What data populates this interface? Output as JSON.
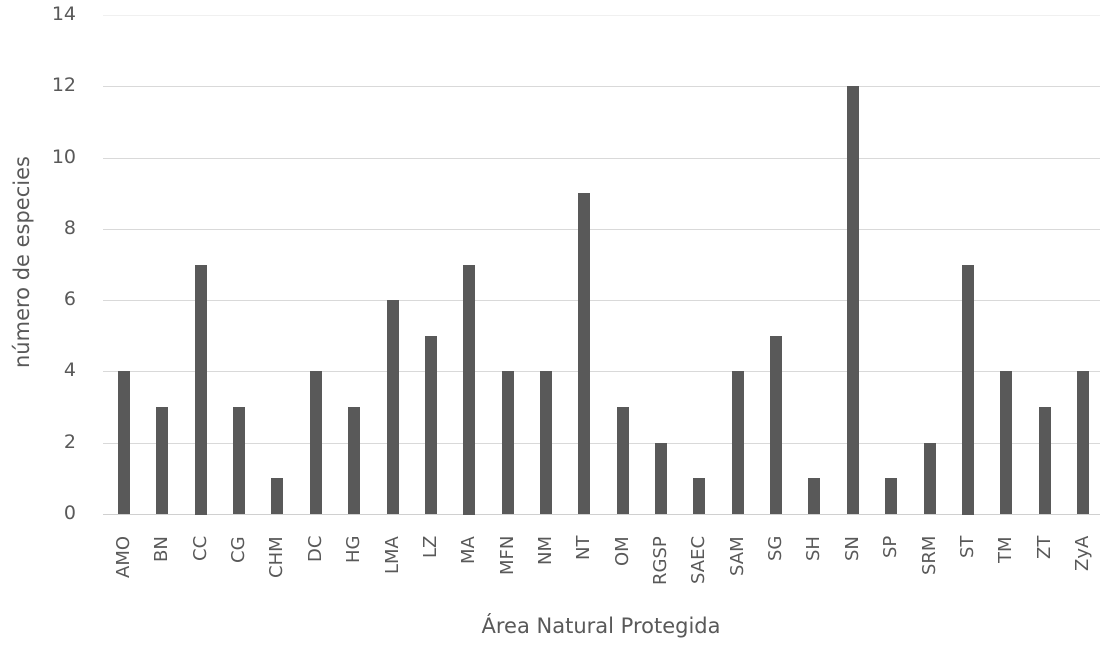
{
  "chart_data": {
    "type": "bar",
    "title": "",
    "xlabel": "Área Natural Protegida",
    "ylabel": "número de especies",
    "ylim": [
      0,
      14
    ],
    "yticks": [
      0,
      2,
      4,
      6,
      8,
      10,
      12,
      14
    ],
    "grid": true,
    "legend": null,
    "bar_color": "#595959",
    "categories": [
      "AMO",
      "BN",
      "CC",
      "CG",
      "CHM",
      "DC",
      "HG",
      "LMA",
      "LZ",
      "MA",
      "MFN",
      "NM",
      "NT",
      "OM",
      "RGSP",
      "SAEC",
      "SAM",
      "SG",
      "SH",
      "SN",
      "SP",
      "SRM",
      "ST",
      "TM",
      "ZT",
      "ZyA"
    ],
    "values": [
      4,
      3,
      7,
      3,
      1,
      4,
      3,
      6,
      5,
      7,
      4,
      4,
      9,
      3,
      2,
      1,
      4,
      5,
      1,
      12,
      1,
      2,
      7,
      4,
      3,
      4
    ]
  }
}
